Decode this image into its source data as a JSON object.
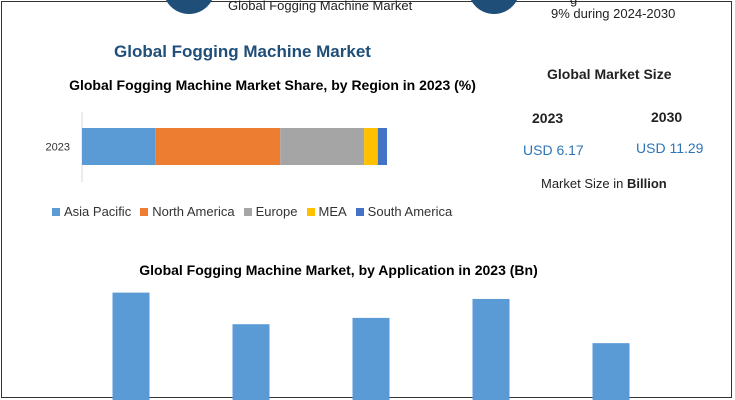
{
  "header": {
    "left_text": "Global Fogging Machine Market",
    "right_text_top": "g",
    "right_text": "9% during 2024-2030"
  },
  "title": "Global Fogging Machine Market",
  "market_size": {
    "heading": "Global Market Size",
    "year_2023": "2023",
    "year_2030": "2030",
    "value_2023": "USD 6.17",
    "value_2030": "USD 11.29",
    "note_prefix": "Market Size in ",
    "note_bold": "Billion"
  },
  "colors": {
    "title_blue": "#1f4e79",
    "asia_pacific": "#5b9bd5",
    "north_america": "#ed7d31",
    "europe": "#a5a5a5",
    "mea": "#ffc000",
    "south_america": "#4472c4"
  },
  "chart_data": [
    {
      "type": "bar",
      "orientation": "horizontal-stacked",
      "title": "Global Fogging Machine Market Share, by Region in 2023 (%)",
      "categories": [
        "2023"
      ],
      "series": [
        {
          "name": "Asia Pacific",
          "values": [
            24
          ]
        },
        {
          "name": "North America",
          "values": [
            41
          ]
        },
        {
          "name": "Europe",
          "values": [
            27.5
          ]
        },
        {
          "name": "MEA",
          "values": [
            4.5
          ]
        },
        {
          "name": "South America",
          "values": [
            3
          ]
        }
      ],
      "legend": "bottom"
    },
    {
      "type": "bar",
      "title": "Global Fogging Machine Market, by Application in 2023 (Bn)",
      "categories": [
        "",
        "",
        "",
        "",
        ""
      ],
      "values": [
        1.7,
        1.2,
        1.3,
        1.6,
        0.9
      ],
      "ylim": [
        0,
        1.9
      ]
    }
  ]
}
